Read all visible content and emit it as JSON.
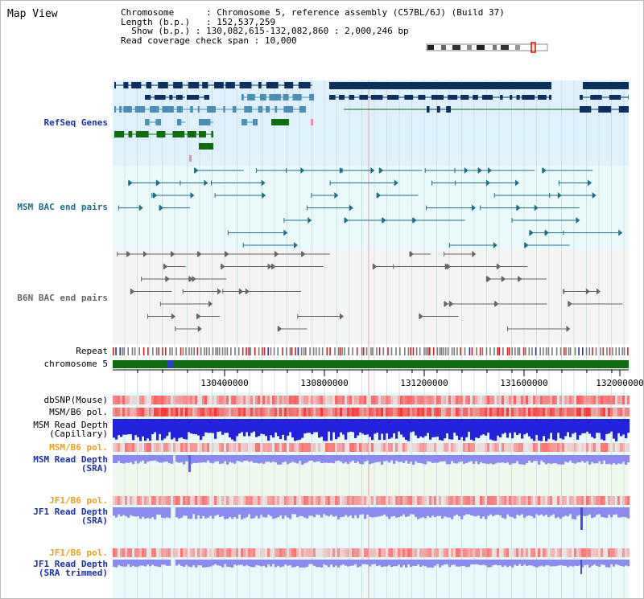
{
  "title": "Map View",
  "info": {
    "chromosome_label": "Chromosome",
    "chromosome_value": "Chromosome 5, reference assembly (C57BL/6J) (Build 37)",
    "length_label": "Length (b.p.)",
    "length_value": "152,537,259",
    "show_label": "Show (b.p.)",
    "show_value": "130,082,615-132,082,860 : 2,000,246 bp",
    "coverage_label": "Read coverage check span",
    "coverage_value": "10,000"
  },
  "tracks": {
    "refseq": "RefSeq Genes",
    "msm_bac": "MSM BAC end pairs",
    "b6n_bac": "B6N BAC end pairs",
    "repeat": "Repeat",
    "chromosome": "chromosome 5",
    "dbsnp": "dbSNP(Mouse)",
    "msm_b6_pol_1": "MSM/B6 pol.",
    "msm_read_depth_cap_1": "MSM Read Depth",
    "msm_read_depth_cap_2": "(Capillary)",
    "msm_b6_pol_2": "MSM/B6 pol.",
    "msm_read_depth_sra_1": "MSM Read Depth",
    "msm_read_depth_sra_2": "(SRA)",
    "jf1_b6_pol_1": "JF1/B6 pol.",
    "jf1_read_depth_1": "JF1 Read Depth",
    "jf1_read_depth_2": "(SRA)",
    "jf1_b6_pol_2": "JF1/B6 pol.",
    "jf1_read_depth_trim_1": "JF1 Read Depth",
    "jf1_read_depth_trim_2": "(SRA trimmed)"
  },
  "axis": {
    "ticks": [
      "130400000",
      "130800000",
      "131200000",
      "131600000",
      "132000000"
    ]
  },
  "colors": {
    "gene_navy": "#0b2f5f",
    "gene_teal": "#4a8fb5",
    "gene_green": "#0e6e0e",
    "track_bg": "#dff2fb",
    "bac_teal": "#1f6f8a",
    "bac_grey": "#666666",
    "snp_red": "#e03030",
    "depth_blue": "#2222dd",
    "depth_light": "#8a8af0"
  }
}
